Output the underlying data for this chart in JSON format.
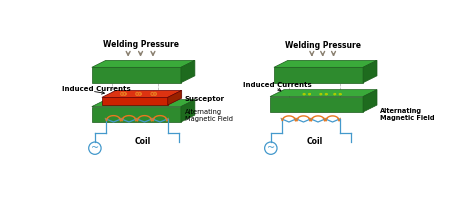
{
  "bg_color": "#ffffff",
  "green_face": "#2e8b2e",
  "green_top": "#3aaa3a",
  "green_right": "#1e6b1e",
  "red_face": "#cc2200",
  "red_top": "#dd3311",
  "red_right": "#992200",
  "orange_color": "#e87820",
  "blue_color": "#4499cc",
  "arrow_color": "#8a8070",
  "yellow_color": "#aacc00",
  "left_labels": {
    "welding_pressure": "Welding Pressure",
    "induced_currents": "Induced Currents",
    "susceptor": "Susceptor",
    "alternating": "Alternating\nMagnetic Field",
    "coil": "Coil"
  },
  "right_labels": {
    "welding_pressure": "Welding Pressure",
    "induced_currents": "Induced Currents",
    "alternating": "Alternating\nMagnetic Field",
    "coil": "Coil"
  }
}
